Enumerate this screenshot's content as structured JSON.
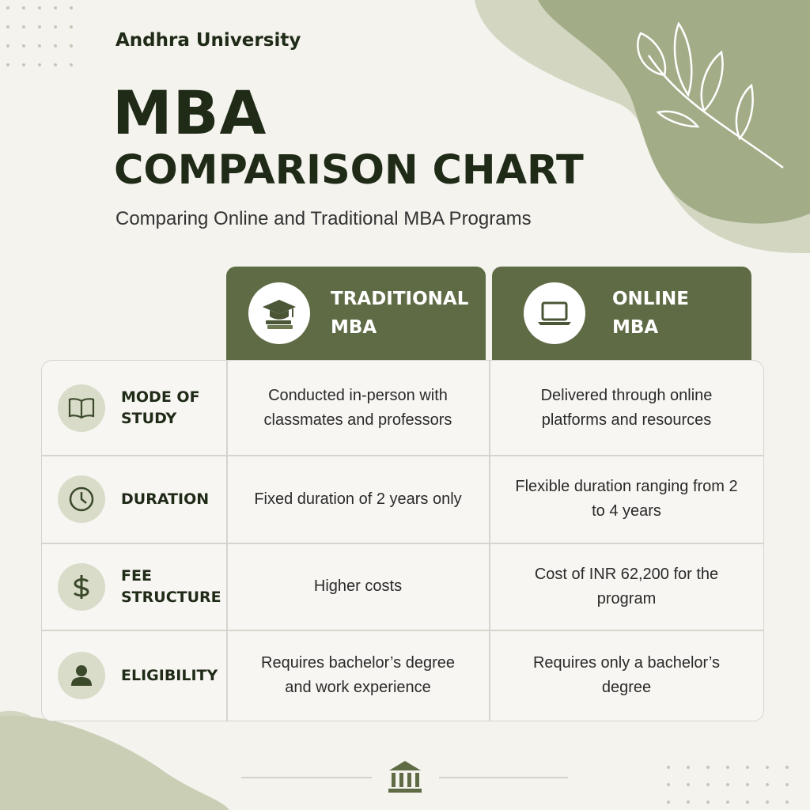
{
  "header": {
    "organization": "Andhra University",
    "title_line1": "MBA",
    "title_line2": "COMPARISON CHART",
    "subtitle": "Comparing Online and Traditional MBA Programs"
  },
  "table": {
    "columns": [
      "TRADITIONAL MBA",
      "ONLINE MBA"
    ],
    "rows": [
      {
        "label": "MODE OF STUDY",
        "cells": [
          "Conducted in-person with classmates and professors",
          "Delivered through online platforms and resources"
        ]
      },
      {
        "label": "DURATION",
        "cells": [
          "Fixed duration of 2 years only",
          "Flexible duration ranging from 2 to 4 years"
        ]
      },
      {
        "label": "FEE STRUCTURE",
        "cells": [
          "Higher costs",
          "Cost of INR 62,200 for the program"
        ]
      },
      {
        "label": "ELIGIBILITY",
        "cells": [
          "Requires bachelor’s degree and work experience",
          "Requires only a bachelor’s degree"
        ]
      }
    ]
  }
}
